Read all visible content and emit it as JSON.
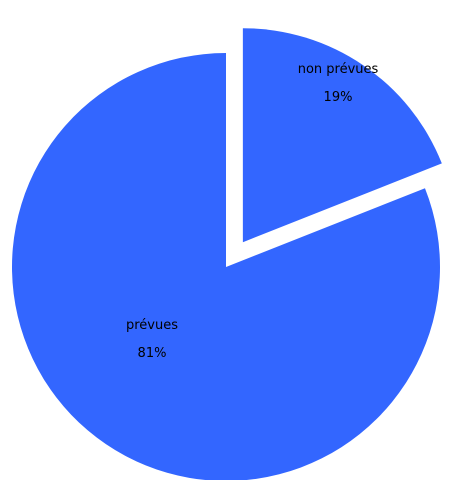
{
  "chart_data": {
    "type": "pie",
    "exploded": "non prévues",
    "slices": [
      {
        "label": "prévues",
        "value": 81,
        "percent_label": "81%",
        "color": "#3366ff"
      },
      {
        "label": "non prévues",
        "value": 19,
        "percent_label": "19%",
        "color": "#3366ff"
      }
    ]
  }
}
